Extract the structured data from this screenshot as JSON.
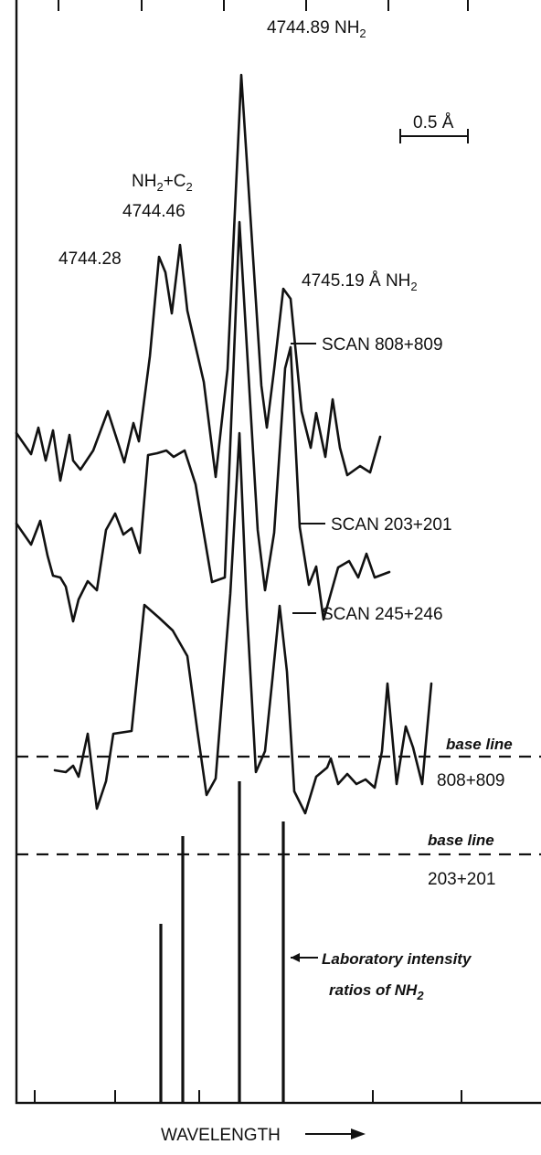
{
  "chart_data": {
    "type": "line",
    "title": "",
    "xlabel": "WAVELENGTH",
    "ylabel": "",
    "scale_bar": "0.5",
    "scale_unit": "Å",
    "peak_labels": {
      "p1": "4744.28",
      "p2_species": "NH",
      "p2_plus": "+C",
      "p2_value": "4744.46",
      "p3_value": "4744.89",
      "p3_species": "NH",
      "p4_value": "4745.19",
      "p4_unit": "Å",
      "p4_species": "NH",
      "sub2": "2"
    },
    "series": [
      {
        "name": "SCAN 808+809",
        "points": [
          [
            18,
            474
          ],
          [
            34,
            497
          ],
          [
            42,
            468
          ],
          [
            50,
            504
          ],
          [
            58,
            471
          ],
          [
            66,
            526
          ],
          [
            76,
            476
          ],
          [
            80,
            504
          ],
          [
            88,
            514
          ],
          [
            102,
            493
          ],
          [
            118,
            450
          ],
          [
            136,
            506
          ],
          [
            146,
            463
          ],
          [
            152,
            483
          ],
          [
            164,
            390
          ],
          [
            174,
            281
          ],
          [
            181,
            298
          ],
          [
            188,
            343
          ],
          [
            197,
            268
          ],
          [
            205,
            340
          ],
          [
            223,
            418
          ],
          [
            236,
            522
          ],
          [
            249,
            404
          ],
          [
            264,
            82
          ],
          [
            286,
            422
          ],
          [
            292,
            468
          ],
          [
            300,
            404
          ],
          [
            310,
            316
          ],
          [
            318,
            327
          ],
          [
            330,
            450
          ],
          [
            340,
            490
          ],
          [
            346,
            452
          ],
          [
            356,
            500
          ],
          [
            364,
            437
          ],
          [
            372,
            490
          ],
          [
            380,
            520
          ],
          [
            394,
            510
          ],
          [
            405,
            517
          ],
          [
            416,
            478
          ]
        ]
      },
      {
        "name": "SCAN 203+201",
        "points": [
          [
            18,
            573
          ],
          [
            34,
            596
          ],
          [
            44,
            570
          ],
          [
            52,
            608
          ],
          [
            58,
            630
          ],
          [
            66,
            632
          ],
          [
            72,
            642
          ],
          [
            80,
            680
          ],
          [
            86,
            656
          ],
          [
            96,
            636
          ],
          [
            106,
            646
          ],
          [
            116,
            580
          ],
          [
            126,
            562
          ],
          [
            135,
            585
          ],
          [
            144,
            578
          ],
          [
            153,
            605
          ],
          [
            162,
            498
          ],
          [
            172,
            496
          ],
          [
            182,
            493
          ],
          [
            190,
            500
          ],
          [
            202,
            493
          ],
          [
            214,
            530
          ],
          [
            232,
            637
          ],
          [
            246,
            632
          ],
          [
            262,
            243
          ],
          [
            282,
            580
          ],
          [
            290,
            646
          ],
          [
            300,
            583
          ],
          [
            312,
            403
          ],
          [
            318,
            380
          ],
          [
            328,
            577
          ],
          [
            338,
            640
          ],
          [
            346,
            620
          ],
          [
            354,
            678
          ],
          [
            370,
            621
          ],
          [
            382,
            614
          ],
          [
            392,
            632
          ],
          [
            401,
            606
          ],
          [
            410,
            632
          ],
          [
            426,
            626
          ]
        ]
      },
      {
        "name": "SCAN 245+246",
        "points": [
          [
            60,
            843
          ],
          [
            72,
            845
          ],
          [
            80,
            838
          ],
          [
            86,
            850
          ],
          [
            96,
            803
          ],
          [
            106,
            885
          ],
          [
            116,
            855
          ],
          [
            124,
            803
          ],
          [
            144,
            800
          ],
          [
            158,
            662
          ],
          [
            174,
            676
          ],
          [
            189,
            690
          ],
          [
            205,
            718
          ],
          [
            216,
            800
          ],
          [
            226,
            870
          ],
          [
            236,
            852
          ],
          [
            252,
            650
          ],
          [
            262,
            474
          ],
          [
            270,
            665
          ],
          [
            280,
            845
          ],
          [
            290,
            822
          ],
          [
            298,
            744
          ],
          [
            306,
            663
          ],
          [
            314,
            735
          ],
          [
            322,
            866
          ],
          [
            334,
            890
          ],
          [
            346,
            850
          ],
          [
            358,
            840
          ],
          [
            362,
            830
          ],
          [
            370,
            858
          ],
          [
            380,
            847
          ],
          [
            390,
            858
          ],
          [
            400,
            853
          ],
          [
            410,
            862
          ],
          [
            418,
            822
          ],
          [
            424,
            748
          ],
          [
            434,
            858
          ],
          [
            444,
            795
          ],
          [
            452,
            818
          ],
          [
            462,
            858
          ],
          [
            472,
            748
          ]
        ]
      }
    ],
    "scan_labels": [
      "SCAN 808+809",
      "SCAN 203+201",
      "SCAN 245+246"
    ],
    "baselines": [
      {
        "label": "base line",
        "sub": "808+809"
      },
      {
        "label": "base line",
        "sub": "203+201"
      }
    ],
    "lab_lines_label_1": "Laboratory intensity",
    "lab_lines_label_2": "ratios of NH",
    "lab_lines": [
      {
        "wavelength": "4744.28",
        "relative_intensity": 0.49
      },
      {
        "wavelength": "4744.46",
        "relative_intensity": 0.73
      },
      {
        "wavelength": "4744.89",
        "relative_intensity": 0.88
      },
      {
        "wavelength": "4745.19",
        "relative_intensity": 0.77
      }
    ],
    "grid": false
  }
}
